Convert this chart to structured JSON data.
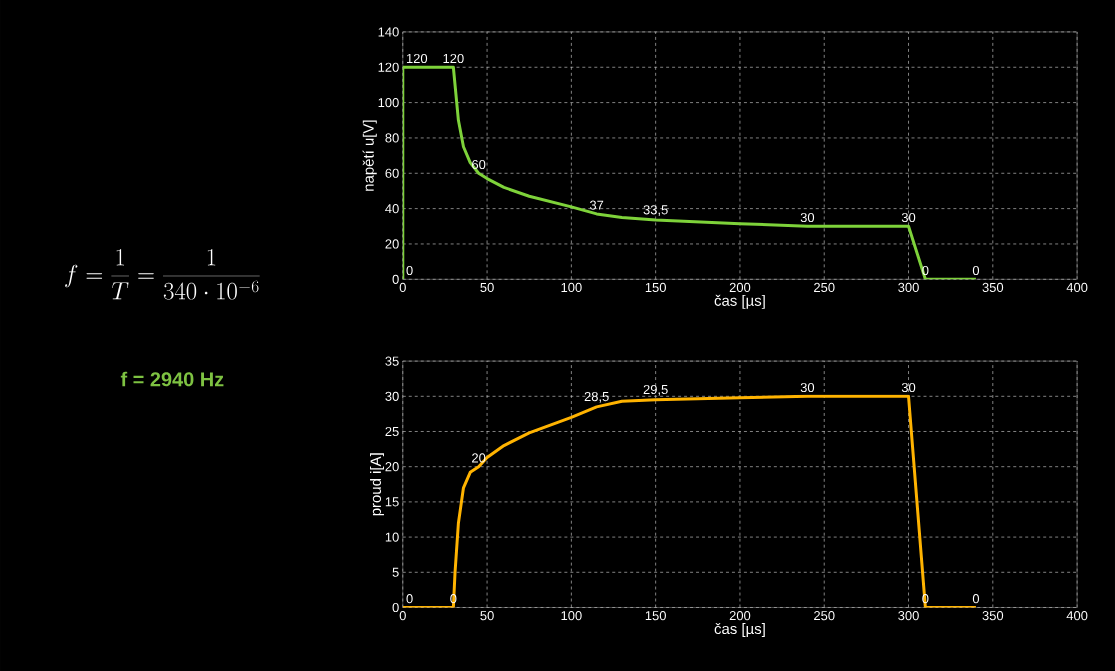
{
  "chart_data": [
    {
      "type": "other",
      "annotations": [
        "f=\\frac{1}{T}=\\frac{1}{340\\cdot 10^{-6}}",
        "f = 2940 Hz"
      ]
    },
    {
      "type": "line",
      "xlabel": "čas [µs]",
      "ylabel": "napětí u[V]",
      "xlim": [
        0,
        400
      ],
      "ylim": [
        0,
        140
      ],
      "xticks": [
        0,
        50,
        100,
        150,
        200,
        250,
        300,
        350,
        400
      ],
      "yticks": [
        0,
        20,
        40,
        60,
        80,
        100,
        120,
        140
      ],
      "grid": true,
      "marker": "none",
      "line_style": "solid",
      "series": [
        {
          "color": "#7ed23a",
          "x": [
            0,
            0,
            30,
            31,
            33,
            36,
            40,
            45,
            50,
            60,
            75,
            100,
            115,
            130,
            150,
            200,
            240,
            300,
            310,
            340
          ],
          "values": [
            0,
            120,
            120,
            110,
            90,
            75,
            66,
            60,
            57,
            52,
            47,
            41,
            37,
            35,
            33.5,
            31.5,
            30,
            30,
            0,
            0
          ],
          "value_labels": [
            "0",
            "120",
            "120",
            null,
            null,
            null,
            null,
            "60",
            null,
            null,
            null,
            null,
            "37",
            null,
            "33,5",
            null,
            "30",
            "30",
            "0",
            "0"
          ]
        }
      ]
    },
    {
      "type": "line",
      "xlabel": "čas [µs]",
      "ylabel": "proud i[A]",
      "xlim": [
        0,
        400
      ],
      "ylim": [
        0,
        35
      ],
      "xticks": [
        0,
        50,
        100,
        150,
        200,
        250,
        300,
        350,
        400
      ],
      "yticks": [
        0,
        5,
        10,
        15,
        20,
        25,
        30,
        35
      ],
      "grid": true,
      "marker": "none",
      "line_style": "solid",
      "series": [
        {
          "color": "#ffb300",
          "x": [
            0,
            30,
            31,
            33,
            36,
            40,
            45,
            50,
            60,
            75,
            100,
            115,
            130,
            150,
            200,
            240,
            300,
            310,
            340
          ],
          "values": [
            0,
            0,
            5,
            12,
            17,
            19.2,
            20,
            21.3,
            23,
            24.8,
            27,
            28.5,
            29.3,
            29.5,
            29.8,
            30,
            30,
            0,
            0
          ],
          "value_labels": [
            "0",
            "0",
            null,
            null,
            null,
            null,
            "20",
            null,
            null,
            null,
            null,
            "28,5",
            null,
            "29,5",
            null,
            "30",
            "30",
            "0",
            "0"
          ]
        }
      ]
    }
  ]
}
